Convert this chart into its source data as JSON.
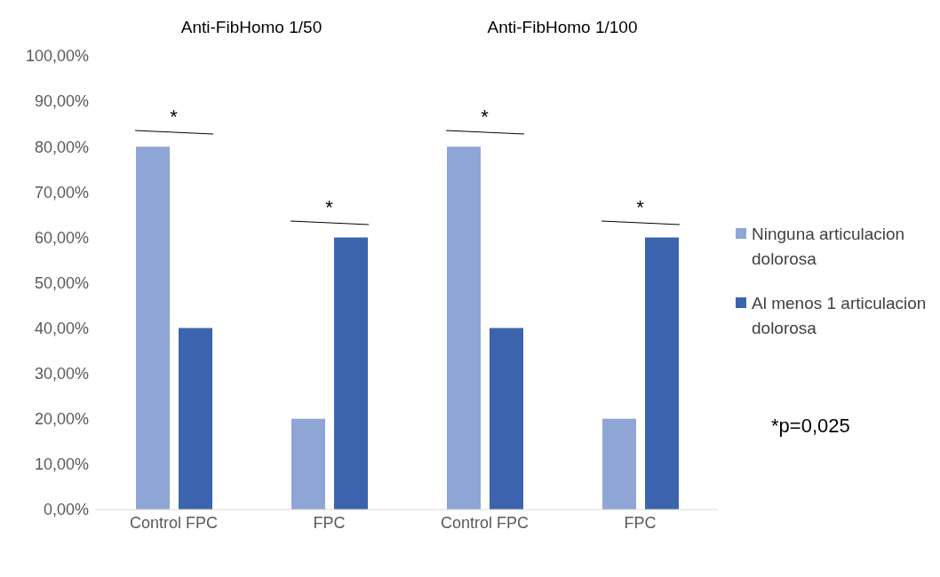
{
  "chart_data": {
    "type": "bar",
    "categories": [
      "Control FPC",
      "FPC",
      "Control FPC",
      "FPC"
    ],
    "series": [
      {
        "name": "Ninguna articulacion dolorosa",
        "color": "#8ea5d6",
        "values": [
          80,
          20,
          80,
          20
        ]
      },
      {
        "name": "Al menos 1 articulacion dolorosa",
        "color": "#3c64ae",
        "values": [
          40,
          60,
          40,
          60
        ]
      }
    ],
    "ylim": [
      0,
      100
    ],
    "yticks": [
      {
        "value": 0,
        "label": "0,00%"
      },
      {
        "value": 10,
        "label": "10,00%"
      },
      {
        "value": 20,
        "label": "20,00%"
      },
      {
        "value": 30,
        "label": "30,00%"
      },
      {
        "value": 40,
        "label": "40,00%"
      },
      {
        "value": 50,
        "label": "50,00%"
      },
      {
        "value": 60,
        "label": "60,00%"
      },
      {
        "value": 70,
        "label": "70,00%"
      },
      {
        "value": 80,
        "label": "80,00%"
      },
      {
        "value": 90,
        "label": "90,00%"
      },
      {
        "value": 100,
        "label": "100,00%"
      }
    ],
    "grid": false,
    "legend": "right",
    "annotations": [
      "Anti-FibHomo 1/50",
      "Anti-FibHomo 1/100",
      "*",
      "*",
      "*",
      "*",
      "*p=0,025"
    ]
  }
}
